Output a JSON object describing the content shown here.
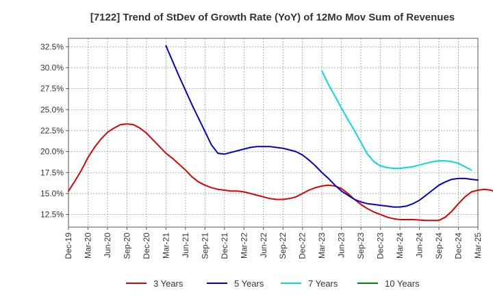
{
  "chart_data": {
    "type": "line",
    "title": "[7122]  Trend of StDev of Growth Rate (YoY) of 12Mo Mov Sum of Revenues",
    "xlabel": "",
    "ylabel": "",
    "ylim": [
      11.0,
      33.5
    ],
    "yticks": [
      12.5,
      15.0,
      17.5,
      20.0,
      22.5,
      25.0,
      27.5,
      30.0,
      32.5
    ],
    "ytick_labels": [
      "12.5%",
      "15.0%",
      "17.5%",
      "20.0%",
      "22.5%",
      "25.0%",
      "27.5%",
      "30.0%",
      "32.5%"
    ],
    "xtick_labels": [
      "Dec-19",
      "Mar-20",
      "Jun-20",
      "Sep-20",
      "Dec-20",
      "Mar-21",
      "Jun-21",
      "Sep-21",
      "Dec-21",
      "Mar-22",
      "Jun-22",
      "Sep-22",
      "Dec-22",
      "Mar-23",
      "Jun-23",
      "Sep-23",
      "Dec-23",
      "Mar-24",
      "Jun-24",
      "Sep-24",
      "Dec-24",
      "Mar-25"
    ],
    "grid": true,
    "legend_position": "bottom",
    "series": [
      {
        "name": "3 Years",
        "color": "#dd0000",
        "start_month": 0,
        "values": [
          15.3,
          16.5,
          17.8,
          19.3,
          20.5,
          21.5,
          22.3,
          22.8,
          23.2,
          23.3,
          23.2,
          22.8,
          22.2,
          21.4,
          20.6,
          19.8,
          19.2,
          18.5,
          17.8,
          17.0,
          16.4,
          16.0,
          15.7,
          15.5,
          15.4,
          15.3,
          15.3,
          15.2,
          15.0,
          14.8,
          14.6,
          14.4,
          14.3,
          14.3,
          14.4,
          14.6,
          15.0,
          15.4,
          15.7,
          15.9,
          16.0,
          15.9,
          15.6,
          15.0,
          14.3,
          13.7,
          13.2,
          12.8,
          12.5,
          12.2,
          12.0,
          11.9,
          11.9,
          11.9,
          11.85,
          11.8,
          11.8,
          11.8,
          12.2,
          12.9,
          13.8,
          14.6,
          15.2,
          15.4,
          15.5,
          15.4,
          15.1,
          14.4
        ]
      },
      {
        "name": "5 Years",
        "color": "#0000cc",
        "start_month": 15,
        "values": [
          32.6,
          30.8,
          29.0,
          27.3,
          25.6,
          24.0,
          22.4,
          20.8,
          19.8,
          19.7,
          19.9,
          20.1,
          20.3,
          20.5,
          20.6,
          20.6,
          20.6,
          20.5,
          20.4,
          20.2,
          20.0,
          19.6,
          19.0,
          18.3,
          17.5,
          16.8,
          16.0,
          15.3,
          14.8,
          14.3,
          14.0,
          13.8,
          13.7,
          13.6,
          13.5,
          13.4,
          13.4,
          13.5,
          13.8,
          14.2,
          14.8,
          15.4,
          16.0,
          16.4,
          16.7,
          16.8,
          16.8,
          16.7,
          16.6
        ]
      },
      {
        "name": "7 Years",
        "color": "#00dddd",
        "start_month": 39,
        "values": [
          29.6,
          28.0,
          26.6,
          25.2,
          23.8,
          22.5,
          21.1,
          19.7,
          18.8,
          18.3,
          18.1,
          18.0,
          18.0,
          18.1,
          18.2,
          18.4,
          18.6,
          18.8,
          18.9,
          18.9,
          18.8,
          18.6,
          18.2,
          17.8
        ]
      },
      {
        "name": "10 Years",
        "color": "#008800",
        "start_month": 0,
        "values": []
      }
    ]
  }
}
